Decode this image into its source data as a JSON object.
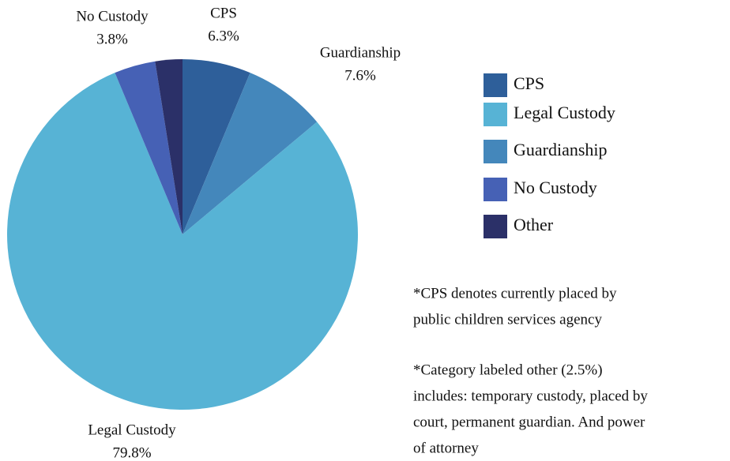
{
  "chart_data": {
    "type": "pie",
    "categories": [
      "CPS",
      "Guardianship",
      "Legal Custody",
      "No Custody",
      "Other"
    ],
    "values": [
      6.3,
      7.6,
      79.8,
      3.8,
      2.5
    ],
    "value_labels": [
      "6.3%",
      "7.6%",
      "79.8%",
      "3.8%",
      null
    ],
    "colors": [
      "#2e5f9a",
      "#4487bb",
      "#57b3d5",
      "#4661b5",
      "#2b3068"
    ],
    "legend": [
      "CPS",
      "Legal Custody",
      "Guardianship",
      "No Custody",
      "Other"
    ],
    "notes": [
      [
        "*CPS denotes currently placed by",
        "public children services agency"
      ],
      [
        "*Category labeled other (2.5%)",
        "includes: temporary custody, placed by",
        "court, permanent guardian. And power",
        "of attorney"
      ]
    ]
  }
}
